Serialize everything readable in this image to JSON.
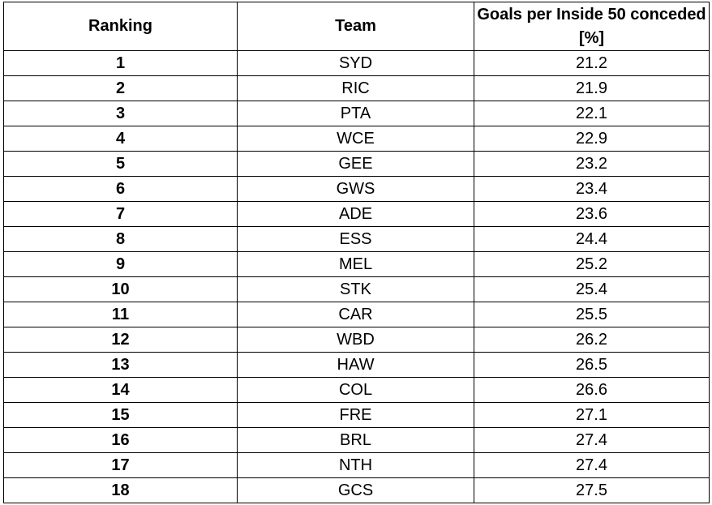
{
  "table": {
    "headers": {
      "ranking": "Ranking",
      "team": "Team",
      "metric": "Goals per Inside 50 conceded [%]"
    },
    "rows": [
      {
        "rank": "1",
        "team": "SYD",
        "value": "21.2"
      },
      {
        "rank": "2",
        "team": "RIC",
        "value": "21.9"
      },
      {
        "rank": "3",
        "team": "PTA",
        "value": "22.1"
      },
      {
        "rank": "4",
        "team": "WCE",
        "value": "22.9"
      },
      {
        "rank": "5",
        "team": "GEE",
        "value": "23.2"
      },
      {
        "rank": "6",
        "team": "GWS",
        "value": "23.4"
      },
      {
        "rank": "7",
        "team": "ADE",
        "value": "23.6"
      },
      {
        "rank": "8",
        "team": "ESS",
        "value": "24.4"
      },
      {
        "rank": "9",
        "team": "MEL",
        "value": "25.2"
      },
      {
        "rank": "10",
        "team": "STK",
        "value": "25.4"
      },
      {
        "rank": "11",
        "team": "CAR",
        "value": "25.5"
      },
      {
        "rank": "12",
        "team": "WBD",
        "value": "26.2"
      },
      {
        "rank": "13",
        "team": "HAW",
        "value": "26.5"
      },
      {
        "rank": "14",
        "team": "COL",
        "value": "26.6"
      },
      {
        "rank": "15",
        "team": "FRE",
        "value": "27.1"
      },
      {
        "rank": "16",
        "team": "BRL",
        "value": "27.4"
      },
      {
        "rank": "17",
        "team": "NTH",
        "value": "27.4"
      },
      {
        "rank": "18",
        "team": "GCS",
        "value": "27.5"
      }
    ]
  }
}
